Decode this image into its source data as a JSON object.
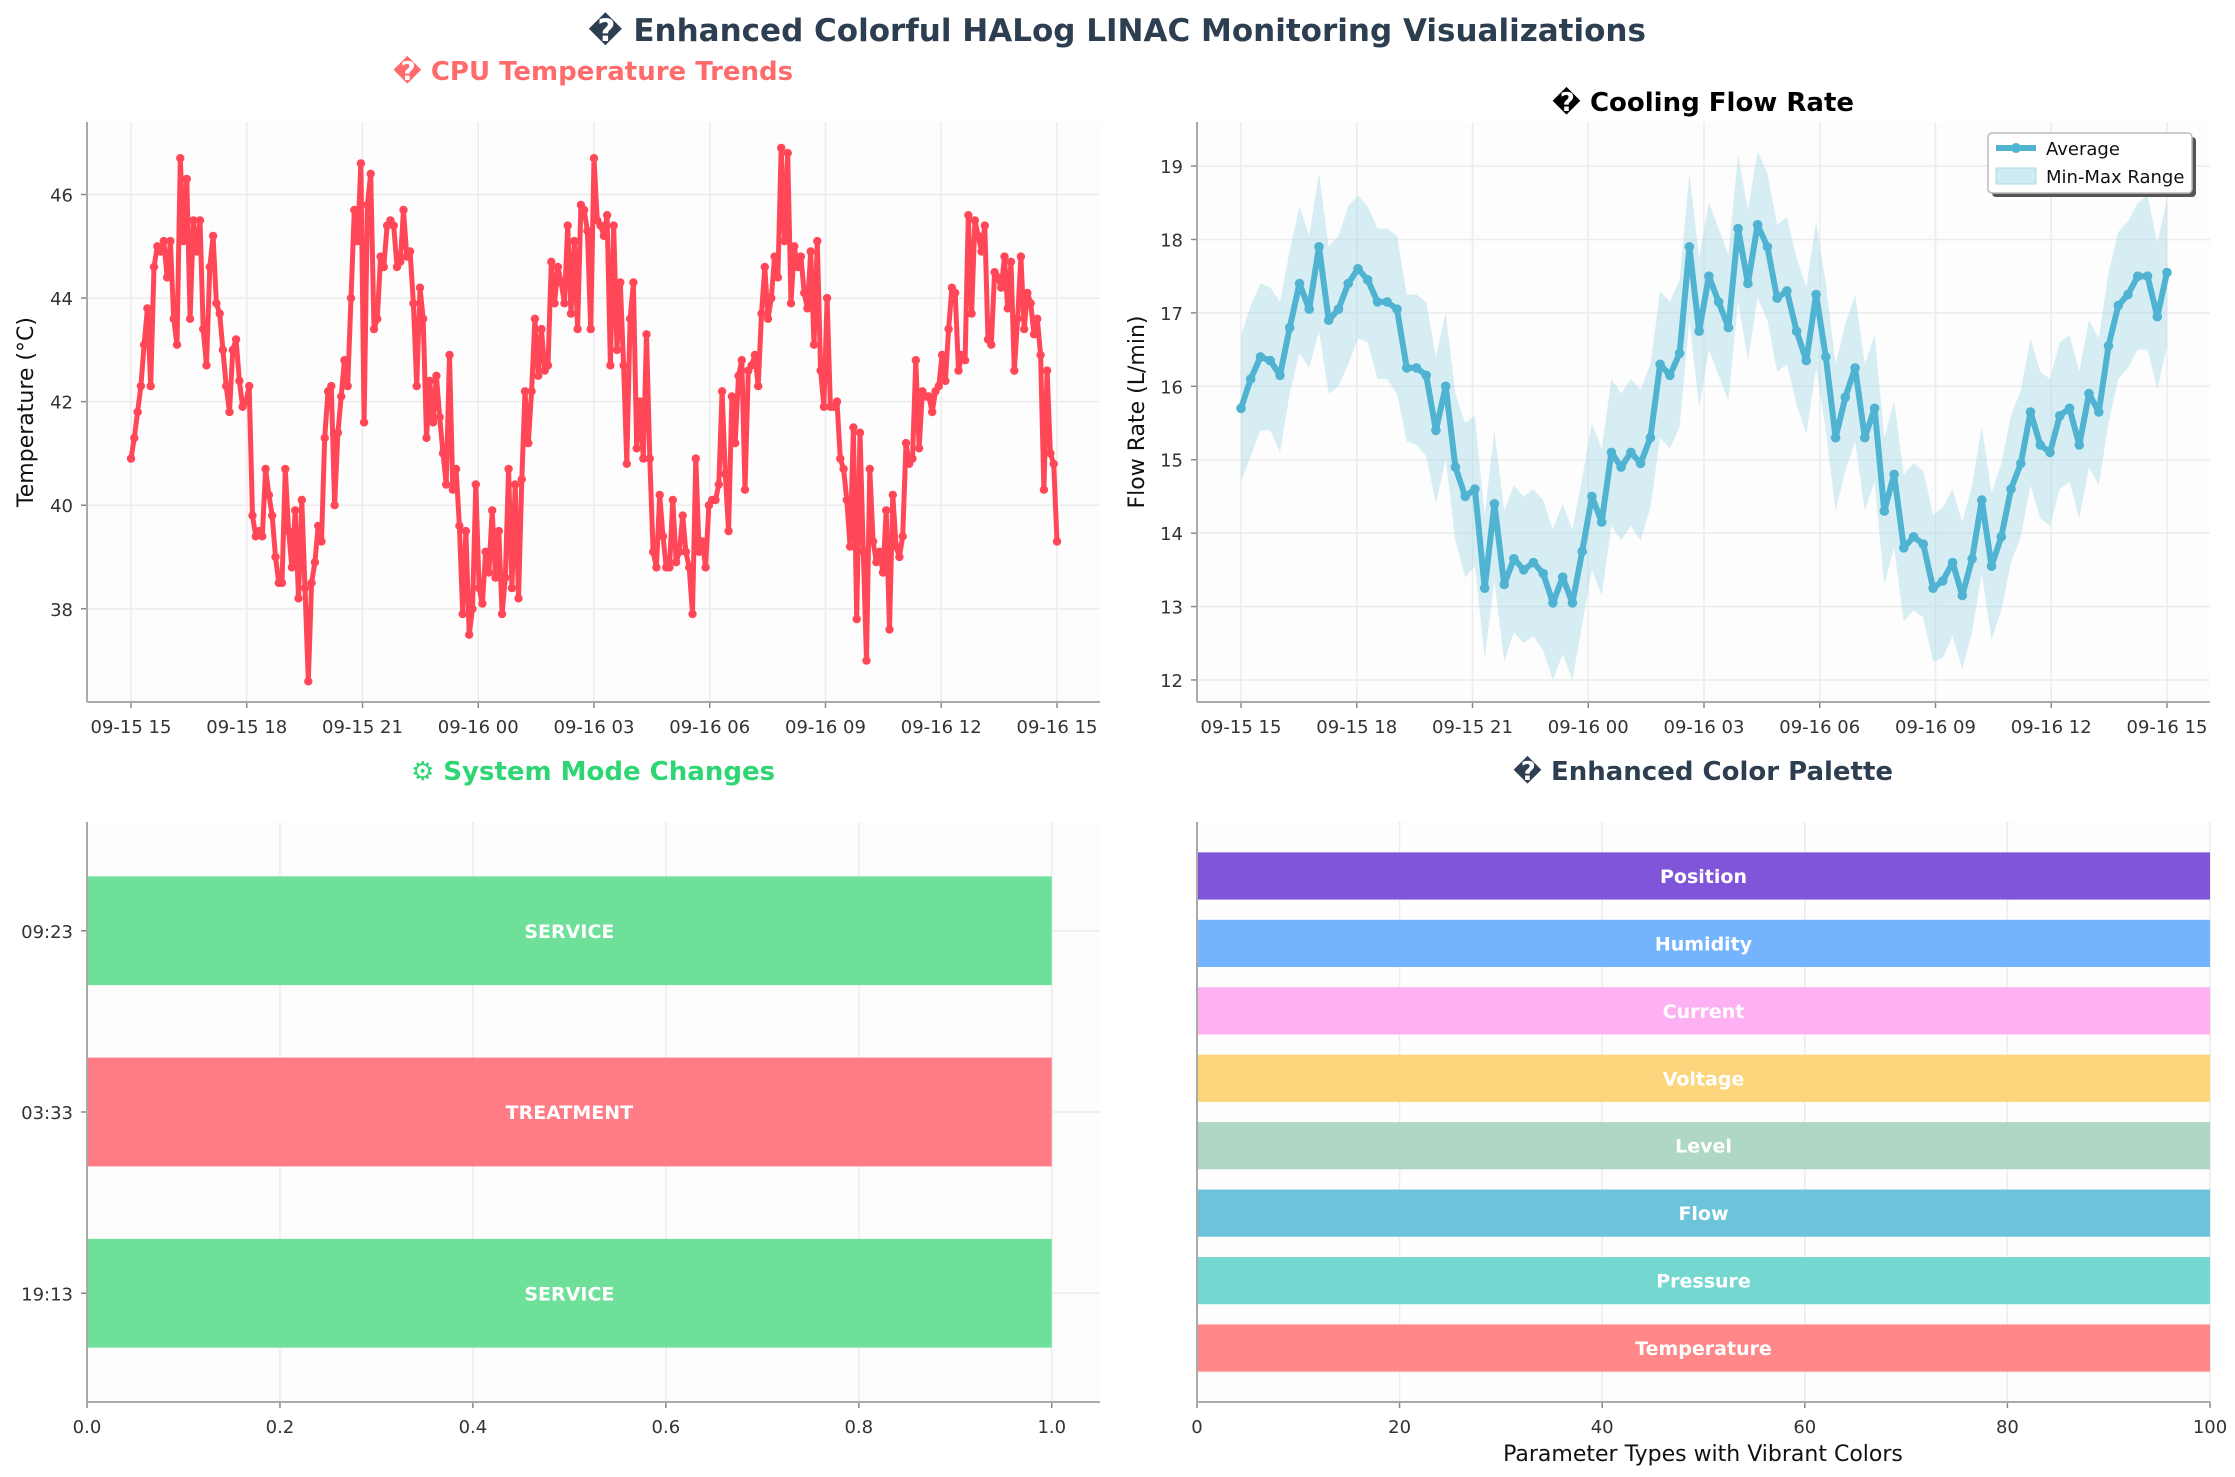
{
  "figure": {
    "title": "� Enhanced Colorful HALog LINAC Monitoring Visualizations",
    "title_color": "#2c3e50"
  },
  "chart_data": [
    {
      "id": "cpu",
      "type": "line",
      "title": "� CPU Temperature Trends",
      "title_color": "#ff6b6b",
      "xlabel": "",
      "ylabel": "Temperature (°C)",
      "x_start": "09-15 15:00",
      "x_end": "09-16 15:00",
      "xticks": [
        "09-15 15",
        "09-15 18",
        "09-15 21",
        "09-16 00",
        "09-16 03",
        "09-16 06",
        "09-16 09",
        "09-16 12",
        "09-16 15"
      ],
      "yticks": [
        38,
        40,
        42,
        44,
        46
      ],
      "ylim": [
        36.2,
        47.4
      ],
      "grid": true,
      "color": "#ff4757",
      "series": [
        {
          "values": [
            40.9,
            41.3,
            41.8,
            42.3,
            43.1,
            43.8,
            42.3,
            44.6,
            45.0,
            44.9,
            45.1,
            44.4,
            45.1,
            43.6,
            43.1,
            46.7,
            45.1,
            46.3,
            43.6,
            45.5,
            44.9,
            45.5,
            43.4,
            42.7,
            44.6,
            45.2,
            43.9,
            43.7,
            43.0,
            42.3,
            41.8,
            43.0,
            43.2,
            42.4,
            41.9,
            42.0,
            42.3,
            39.8,
            39.4,
            39.5,
            39.4,
            40.7,
            40.2,
            39.8,
            39.0,
            38.5,
            38.5,
            40.7,
            39.5,
            38.8,
            39.9,
            38.2,
            40.1,
            38.4,
            36.6,
            38.5,
            38.9,
            39.6,
            39.3,
            41.3,
            42.2,
            42.3,
            40.0,
            41.4,
            42.1,
            42.8,
            42.3,
            44.0,
            45.7,
            45.1,
            46.6,
            41.6,
            45.8,
            46.4,
            43.4,
            43.6,
            44.8,
            44.6,
            45.4,
            45.5,
            45.4,
            44.6,
            44.7,
            45.7,
            44.8,
            44.9,
            43.9,
            42.3,
            44.2,
            43.6,
            41.3,
            42.4,
            41.6,
            42.5,
            41.7,
            41.0,
            40.4,
            42.9,
            40.3,
            40.7,
            39.6,
            37.9,
            39.5,
            37.5,
            38.0,
            40.4,
            38.4,
            38.1,
            39.1,
            38.7,
            39.9,
            38.6,
            39.5,
            37.9,
            38.6,
            40.7,
            38.4,
            40.4,
            38.2,
            40.5,
            42.2,
            41.2,
            42.2,
            43.6,
            42.5,
            43.4,
            42.6,
            42.7,
            44.7,
            43.9,
            44.6,
            44.3,
            43.9,
            45.4,
            43.7,
            45.1,
            43.4,
            45.8,
            45.7,
            45.3,
            43.4,
            46.7,
            45.5,
            45.4,
            45.2,
            45.6,
            42.7,
            45.4,
            43.0,
            44.3,
            42.7,
            40.8,
            43.6,
            44.3,
            41.1,
            42.0,
            40.9,
            43.3,
            40.9,
            39.1,
            38.8,
            40.2,
            39.4,
            38.8,
            38.8,
            40.1,
            38.9,
            39.1,
            39.8,
            39.1,
            38.8,
            37.9,
            40.9,
            39.1,
            39.3,
            38.8,
            40.0,
            40.1,
            40.1,
            40.4,
            42.2,
            40.6,
            39.5,
            42.1,
            41.2,
            42.5,
            42.8,
            40.3,
            42.6,
            42.7,
            42.9,
            42.3,
            43.7,
            44.6,
            43.6,
            44.0,
            44.8,
            44.4,
            46.9,
            45.1,
            46.8,
            43.9,
            45.0,
            44.6,
            44.8,
            44.1,
            43.8,
            44.9,
            43.1,
            45.1,
            42.6,
            41.9,
            44.0,
            41.9,
            41.9,
            42.0,
            40.9,
            40.7,
            40.1,
            39.2,
            41.5,
            37.8,
            41.4,
            39.1,
            37.0,
            40.7,
            39.3,
            38.9,
            39.1,
            38.7,
            39.9,
            37.6,
            40.2,
            39.2,
            39.0,
            39.4,
            41.2,
            40.8,
            40.9,
            42.8,
            41.1,
            42.2,
            42.1,
            42.1,
            41.8,
            42.2,
            42.3,
            42.9,
            42.4,
            43.4,
            44.2,
            44.1,
            42.6,
            42.9,
            42.8,
            45.6,
            43.7,
            45.5,
            45.2,
            44.9,
            45.4,
            43.2,
            43.1,
            44.5,
            44.4,
            44.2,
            44.8,
            43.8,
            44.7,
            42.6,
            43.6,
            44.8,
            43.4,
            44.1,
            43.9,
            43.3,
            43.6,
            42.9,
            40.3,
            42.6,
            41.0,
            40.8,
            39.3
          ],
          "name": ""
        }
      ]
    },
    {
      "id": "flow",
      "type": "line",
      "title": "� Cooling Flow Rate",
      "title_color": "#000000",
      "xlabel": "",
      "ylabel": "Flow Rate (L/min)",
      "x_start": "09-15 15:00",
      "x_end": "09-16 15:00",
      "xticks": [
        "09-15 15",
        "09-15 18",
        "09-15 21",
        "09-16 00",
        "09-16 03",
        "09-16 06",
        "09-16 09",
        "09-16 12",
        "09-16 15"
      ],
      "yticks": [
        12,
        13,
        14,
        15,
        16,
        17,
        18,
        19
      ],
      "ylim": [
        11.7,
        19.6
      ],
      "grid": true,
      "color": "#4fb3d1",
      "band_color": "#a8dae8",
      "legend_position": "upper right",
      "legend": [
        "Average",
        "Min-Max Range"
      ],
      "series": [
        {
          "name": "Average",
          "values": [
            15.7,
            16.1,
            16.4,
            16.35,
            16.15,
            16.8,
            17.4,
            17.05,
            17.9,
            16.9,
            17.05,
            17.4,
            17.6,
            17.45,
            17.15,
            17.15,
            17.05,
            16.25,
            16.25,
            16.15,
            15.4,
            16.0,
            14.9,
            14.5,
            14.6,
            13.25,
            14.4,
            13.3,
            13.65,
            13.5,
            13.6,
            13.45,
            13.05,
            13.4,
            13.05,
            13.75,
            14.5,
            14.15,
            15.1,
            14.9,
            15.1,
            14.95,
            15.3,
            16.3,
            16.15,
            16.45,
            17.9,
            16.75,
            17.5,
            17.15,
            16.8,
            18.15,
            17.4,
            18.2,
            17.9,
            17.2,
            17.3,
            16.75,
            16.35,
            17.25,
            16.4,
            15.3,
            15.85,
            16.25,
            15.3,
            15.7,
            14.3,
            14.8,
            13.8,
            13.95,
            13.85,
            13.25,
            13.35,
            13.6,
            13.15,
            13.65,
            14.45,
            13.55,
            13.95,
            14.6,
            14.95,
            15.65,
            15.2,
            15.1,
            15.6,
            15.7,
            15.2,
            15.9,
            15.65,
            16.55,
            17.1,
            17.25,
            17.5,
            17.5,
            16.95,
            17.55
          ]
        },
        {
          "name": "Min-Max Range",
          "lower": [
            14.7,
            15.05,
            15.4,
            15.4,
            15.1,
            15.9,
            16.45,
            16.25,
            16.75,
            15.9,
            16.0,
            16.3,
            16.65,
            16.6,
            16.1,
            16.1,
            15.9,
            15.25,
            15.2,
            15.05,
            14.4,
            15.0,
            13.9,
            13.4,
            13.55,
            12.3,
            13.35,
            12.25,
            12.65,
            12.5,
            12.6,
            12.4,
            12.0,
            12.35,
            12.0,
            12.75,
            13.5,
            13.15,
            14.1,
            13.9,
            14.1,
            13.9,
            14.35,
            15.3,
            15.15,
            15.45,
            16.9,
            15.7,
            16.5,
            16.15,
            15.8,
            17.15,
            16.35,
            17.2,
            16.9,
            16.2,
            16.3,
            15.75,
            15.35,
            16.25,
            15.4,
            14.3,
            14.85,
            15.25,
            14.3,
            14.7,
            13.3,
            13.8,
            12.8,
            12.95,
            12.85,
            12.25,
            12.3,
            12.6,
            12.15,
            12.65,
            13.45,
            12.55,
            12.95,
            13.6,
            13.95,
            14.65,
            14.2,
            14.1,
            14.6,
            14.7,
            14.2,
            14.9,
            14.65,
            15.5,
            16.1,
            16.25,
            16.5,
            16.5,
            15.95,
            16.55
          ],
          "upper": [
            16.7,
            17.1,
            17.4,
            17.35,
            17.15,
            17.85,
            18.45,
            18.05,
            18.9,
            17.9,
            18.05,
            18.45,
            18.6,
            18.45,
            18.15,
            18.15,
            18.05,
            17.25,
            17.25,
            17.15,
            16.4,
            17.0,
            15.9,
            15.5,
            15.6,
            14.25,
            15.4,
            14.3,
            14.65,
            14.5,
            14.6,
            14.45,
            14.05,
            14.4,
            14.05,
            14.75,
            15.5,
            15.15,
            16.1,
            15.9,
            16.1,
            15.95,
            16.3,
            17.3,
            17.15,
            17.45,
            18.9,
            17.75,
            18.5,
            18.15,
            17.8,
            19.15,
            18.4,
            19.2,
            18.9,
            18.2,
            18.3,
            17.75,
            17.35,
            18.25,
            17.4,
            16.3,
            16.85,
            17.25,
            16.3,
            16.7,
            15.3,
            15.8,
            14.8,
            14.95,
            14.85,
            14.25,
            14.35,
            14.6,
            14.15,
            14.65,
            15.45,
            14.55,
            14.95,
            15.6,
            15.95,
            16.65,
            16.2,
            16.1,
            16.6,
            16.7,
            16.2,
            16.9,
            16.65,
            17.55,
            18.1,
            18.25,
            18.5,
            18.6,
            17.95,
            18.55
          ]
        }
      ]
    },
    {
      "id": "mode",
      "type": "bar",
      "orientation": "horizontal",
      "title": "⚙ System Mode Changes",
      "title_color": "#2ed573",
      "xlabel": "",
      "ylabel": "",
      "xticks": [
        "0.0",
        "0.2",
        "0.4",
        "0.6",
        "0.8",
        "1.0"
      ],
      "xlim": [
        0,
        1.05
      ],
      "grid": true,
      "categories": [
        "19:13",
        "03:33",
        "09:23"
      ],
      "values": [
        1.0,
        1.0,
        1.0
      ],
      "bar_labels": [
        "SERVICE",
        "TREATMENT",
        "SERVICE"
      ],
      "bar_colors": [
        "#6ee09a",
        "#ff7b85",
        "#6ee09a"
      ]
    },
    {
      "id": "palette",
      "type": "bar",
      "orientation": "horizontal",
      "title": "� Enhanced Color Palette",
      "title_color": "#2c3e50",
      "xlabel": "Parameter Types with Vibrant Colors",
      "ylabel": "",
      "xticks": [
        "0",
        "20",
        "40",
        "60",
        "80",
        "100"
      ],
      "xlim": [
        0,
        100
      ],
      "grid": true,
      "categories": [
        "Temperature",
        "Pressure",
        "Flow",
        "Level",
        "Voltage",
        "Current",
        "Humidity",
        "Position"
      ],
      "values": [
        100,
        100,
        100,
        100,
        100,
        100,
        100,
        100
      ],
      "bar_colors": [
        "#ff8787",
        "#74d7d0",
        "#6cc4db",
        "#aed7c4",
        "#fdd57d",
        "#feb1f2",
        "#74b3fe",
        "#8155da"
      ]
    }
  ]
}
